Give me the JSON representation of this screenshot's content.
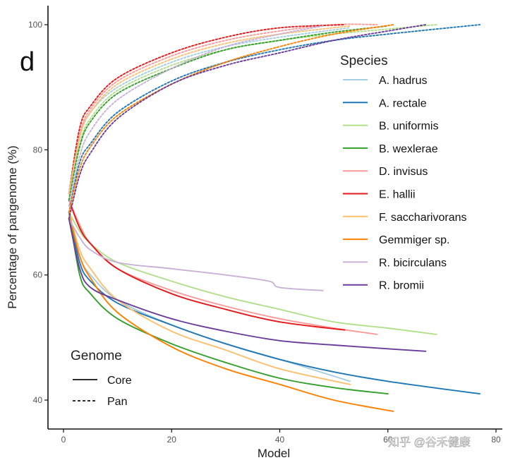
{
  "panel_label": "d",
  "watermark": "知乎 @谷禾健康",
  "chart_data": {
    "type": "line",
    "xlabel": "Model",
    "ylabel": "Percentage of pangenome (%)",
    "xlim": [
      0,
      80
    ],
    "ylim": [
      35,
      103
    ],
    "x_ticks": [
      0,
      20,
      40,
      60,
      80
    ],
    "x_tick_labels": [
      "0",
      "20",
      "40",
      "60",
      "80"
    ],
    "y_ticks": [
      40,
      60,
      80,
      100
    ],
    "y_tick_labels": [
      "40",
      "60",
      "80",
      "100"
    ],
    "grid": false,
    "legend_species": {
      "title": "Species",
      "placement": "right",
      "entries": [
        {
          "label": "A. hadrus",
          "color": "#a6cee3"
        },
        {
          "label": "A. rectale",
          "color": "#1f78b4"
        },
        {
          "label": "B. uniformis",
          "color": "#b2df8a"
        },
        {
          "label": "B. wexlerae",
          "color": "#33a02c"
        },
        {
          "label": "D. invisus",
          "color": "#fb9a99"
        },
        {
          "label": "E. hallii",
          "color": "#e31a1c"
        },
        {
          "label": "F. saccharivorans",
          "color": "#fdbf6f"
        },
        {
          "label": "Gemmiger sp.",
          "color": "#ff7f00"
        },
        {
          "label": "R. bicirculans",
          "color": "#cab2d6"
        },
        {
          "label": "R. bromii",
          "color": "#6a3d9a"
        }
      ]
    },
    "legend_genome": {
      "title": "Genome",
      "placement": "bottom-left",
      "entries": [
        {
          "label": "Core",
          "dash": "solid"
        },
        {
          "label": "Pan",
          "dash": "dashed"
        }
      ]
    },
    "series": [
      {
        "species": "A. hadrus",
        "genome": "Core",
        "color": "#a6cee3",
        "points": [
          [
            1,
            70
          ],
          [
            3,
            63
          ],
          [
            5,
            60
          ],
          [
            10,
            56
          ],
          [
            20,
            52
          ],
          [
            30,
            49
          ],
          [
            40,
            46.5
          ],
          [
            53,
            43
          ]
        ]
      },
      {
        "species": "A. rectale",
        "genome": "Core",
        "color": "#1f78b4",
        "points": [
          [
            1,
            70
          ],
          [
            3,
            62
          ],
          [
            5,
            59
          ],
          [
            10,
            55.5
          ],
          [
            20,
            52
          ],
          [
            30,
            49
          ],
          [
            40,
            46.5
          ],
          [
            50,
            44.5
          ],
          [
            60,
            43
          ],
          [
            77,
            41
          ]
        ]
      },
      {
        "species": "B. uniformis",
        "genome": "Core",
        "color": "#b2df8a",
        "points": [
          [
            1,
            70
          ],
          [
            3,
            67
          ],
          [
            5,
            65
          ],
          [
            10,
            62
          ],
          [
            20,
            59
          ],
          [
            30,
            56.5
          ],
          [
            40,
            54.5
          ],
          [
            50,
            52.5
          ],
          [
            60,
            51.5
          ],
          [
            69,
            50.5
          ]
        ]
      },
      {
        "species": "B. wexlerae",
        "genome": "Core",
        "color": "#33a02c",
        "points": [
          [
            1,
            70
          ],
          [
            3,
            60
          ],
          [
            5,
            57
          ],
          [
            10,
            53
          ],
          [
            20,
            49
          ],
          [
            30,
            46
          ],
          [
            40,
            43.5
          ],
          [
            50,
            42
          ],
          [
            60,
            41
          ]
        ]
      },
      {
        "species": "D. invisus",
        "genome": "Core",
        "color": "#fb9a99",
        "points": [
          [
            1,
            72
          ],
          [
            3,
            68
          ],
          [
            5,
            65
          ],
          [
            10,
            61
          ],
          [
            20,
            57.5
          ],
          [
            30,
            55
          ],
          [
            40,
            53
          ],
          [
            50,
            51.5
          ],
          [
            58,
            50.5
          ]
        ]
      },
      {
        "species": "E. hallii",
        "genome": "Core",
        "color": "#e31a1c",
        "points": [
          [
            1,
            72
          ],
          [
            3,
            67.5
          ],
          [
            5,
            65
          ],
          [
            10,
            61
          ],
          [
            20,
            57
          ],
          [
            30,
            54.5
          ],
          [
            40,
            52.5
          ],
          [
            52,
            51.2
          ]
        ]
      },
      {
        "species": "F. saccharivorans",
        "genome": "Core",
        "color": "#fdbf6f",
        "points": [
          [
            1,
            70
          ],
          [
            3,
            64
          ],
          [
            5,
            61
          ],
          [
            10,
            56
          ],
          [
            20,
            51
          ],
          [
            30,
            48
          ],
          [
            40,
            45
          ],
          [
            53,
            42.5
          ]
        ]
      },
      {
        "species": "Gemmiger sp.",
        "genome": "Core",
        "color": "#ff7f00",
        "points": [
          [
            1,
            70
          ],
          [
            3,
            63
          ],
          [
            5,
            59.5
          ],
          [
            10,
            54
          ],
          [
            20,
            48.5
          ],
          [
            30,
            45
          ],
          [
            40,
            42.5
          ],
          [
            50,
            40
          ],
          [
            61,
            38.2
          ]
        ]
      },
      {
        "species": "R. bicirculans",
        "genome": "Core",
        "color": "#cab2d6",
        "points": [
          [
            1,
            69
          ],
          [
            3,
            66
          ],
          [
            5,
            64
          ],
          [
            10,
            62
          ],
          [
            20,
            61
          ],
          [
            30,
            60
          ],
          [
            38,
            59
          ],
          [
            40,
            58
          ],
          [
            48,
            57.5
          ]
        ]
      },
      {
        "species": "R. bromii",
        "genome": "Core",
        "color": "#6a3d9a",
        "points": [
          [
            1,
            69
          ],
          [
            3,
            61
          ],
          [
            5,
            58
          ],
          [
            10,
            56
          ],
          [
            20,
            53
          ],
          [
            30,
            51
          ],
          [
            40,
            49.5
          ],
          [
            50,
            48.8
          ],
          [
            60,
            48.2
          ],
          [
            67,
            47.8
          ]
        ]
      },
      {
        "species": "A. hadrus",
        "genome": "Pan",
        "color": "#a6cee3",
        "points": [
          [
            1,
            72
          ],
          [
            3,
            82
          ],
          [
            5,
            86
          ],
          [
            10,
            90
          ],
          [
            20,
            94
          ],
          [
            30,
            96.5
          ],
          [
            40,
            98
          ],
          [
            53,
            99.5
          ]
        ]
      },
      {
        "species": "A. rectale",
        "genome": "Pan",
        "color": "#1f78b4",
        "points": [
          [
            1,
            70
          ],
          [
            3,
            78
          ],
          [
            5,
            81
          ],
          [
            10,
            86
          ],
          [
            20,
            91
          ],
          [
            30,
            94
          ],
          [
            40,
            96
          ],
          [
            50,
            97.5
          ],
          [
            60,
            98.5
          ],
          [
            77,
            100
          ]
        ]
      },
      {
        "species": "B. uniformis",
        "genome": "Pan",
        "color": "#b2df8a",
        "points": [
          [
            1,
            73
          ],
          [
            3,
            81
          ],
          [
            5,
            85
          ],
          [
            10,
            89.5
          ],
          [
            20,
            93.5
          ],
          [
            30,
            96
          ],
          [
            40,
            97.5
          ],
          [
            50,
            98.5
          ],
          [
            60,
            99.3
          ],
          [
            69,
            100
          ]
        ]
      },
      {
        "species": "B. wexlerae",
        "genome": "Pan",
        "color": "#33a02c",
        "points": [
          [
            1,
            72
          ],
          [
            3,
            80.5
          ],
          [
            5,
            84.5
          ],
          [
            10,
            89
          ],
          [
            20,
            93
          ],
          [
            30,
            96
          ],
          [
            40,
            97.5
          ],
          [
            50,
            98.8
          ],
          [
            60,
            99.8
          ]
        ]
      },
      {
        "species": "D. invisus",
        "genome": "Pan",
        "color": "#fb9a99",
        "points": [
          [
            1,
            73
          ],
          [
            3,
            82.5
          ],
          [
            5,
            86.5
          ],
          [
            10,
            91
          ],
          [
            20,
            95
          ],
          [
            30,
            97.5
          ],
          [
            40,
            99
          ],
          [
            50,
            100
          ],
          [
            58,
            100
          ]
        ]
      },
      {
        "species": "E. hallii",
        "genome": "Pan",
        "color": "#e31a1c",
        "points": [
          [
            1,
            73
          ],
          [
            3,
            83.5
          ],
          [
            5,
            87
          ],
          [
            10,
            91.5
          ],
          [
            20,
            95.5
          ],
          [
            30,
            98
          ],
          [
            40,
            99.5
          ],
          [
            52,
            100
          ]
        ]
      },
      {
        "species": "F. saccharivorans",
        "genome": "Pan",
        "color": "#fdbf6f",
        "points": [
          [
            1,
            73
          ],
          [
            3,
            82
          ],
          [
            5,
            86
          ],
          [
            10,
            90.5
          ],
          [
            20,
            94.5
          ],
          [
            30,
            97
          ],
          [
            40,
            98.5
          ],
          [
            53,
            99.8
          ]
        ]
      },
      {
        "species": "Gemmiger sp.",
        "genome": "Pan",
        "color": "#ff7f00",
        "points": [
          [
            1,
            70
          ],
          [
            3,
            77
          ],
          [
            5,
            80.5
          ],
          [
            10,
            85.5
          ],
          [
            20,
            90.5
          ],
          [
            30,
            94
          ],
          [
            40,
            96.5
          ],
          [
            50,
            98.5
          ],
          [
            61,
            100
          ]
        ]
      },
      {
        "species": "R. bicirculans",
        "genome": "Pan",
        "color": "#cab2d6",
        "points": [
          [
            1,
            71
          ],
          [
            3,
            79
          ],
          [
            5,
            83
          ],
          [
            10,
            88
          ],
          [
            20,
            93
          ],
          [
            30,
            96.5
          ],
          [
            40,
            98.5
          ],
          [
            48,
            99.8
          ]
        ]
      },
      {
        "species": "R. bromii",
        "genome": "Pan",
        "color": "#6a3d9a",
        "points": [
          [
            1,
            69
          ],
          [
            3,
            76
          ],
          [
            5,
            79.5
          ],
          [
            10,
            85
          ],
          [
            20,
            90.5
          ],
          [
            30,
            93.5
          ],
          [
            40,
            95.5
          ],
          [
            50,
            97.5
          ],
          [
            60,
            99
          ],
          [
            67,
            100
          ]
        ]
      }
    ]
  }
}
